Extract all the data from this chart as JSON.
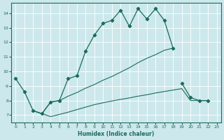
{
  "xlabel": "Humidex (Indice chaleur)",
  "background_color": "#cce8ec",
  "grid_color": "#ffffff",
  "line_color": "#1a6b5a",
  "xlim": [
    -0.5,
    23.5
  ],
  "ylim": [
    6.5,
    14.7
  ],
  "yticks": [
    7,
    8,
    9,
    10,
    11,
    12,
    13,
    14
  ],
  "xticks": [
    0,
    1,
    2,
    3,
    4,
    5,
    6,
    7,
    8,
    9,
    10,
    11,
    12,
    13,
    14,
    15,
    16,
    17,
    18,
    19,
    20,
    21,
    22,
    23
  ],
  "line1_x": [
    0,
    1,
    2,
    3,
    4,
    5,
    6,
    7,
    8,
    9,
    10,
    11,
    12,
    13,
    14,
    15,
    16,
    17,
    18
  ],
  "line1_y": [
    9.5,
    8.6,
    7.3,
    7.1,
    7.9,
    8.0,
    9.5,
    9.7,
    11.4,
    12.5,
    13.3,
    13.5,
    14.2,
    13.1,
    14.3,
    13.6,
    14.3,
    13.5,
    11.6
  ],
  "line2_x": [
    19,
    20,
    21,
    22
  ],
  "line2_y": [
    9.2,
    8.2,
    8.0,
    8.0
  ],
  "line3_x": [
    2,
    3,
    4,
    5,
    6,
    7,
    8,
    9,
    10,
    11,
    12,
    13,
    14,
    15,
    16,
    17,
    18
  ],
  "line3_y": [
    7.3,
    7.1,
    7.9,
    8.0,
    8.3,
    8.55,
    8.85,
    9.1,
    9.4,
    9.65,
    9.95,
    10.25,
    10.6,
    10.9,
    11.15,
    11.45,
    11.6
  ],
  "line4_x": [
    2,
    3,
    4,
    5,
    6,
    7,
    8,
    9,
    10,
    11,
    12,
    13,
    14,
    15,
    16,
    17,
    18,
    19,
    20,
    21,
    22
  ],
  "line4_y": [
    7.3,
    7.1,
    6.9,
    7.05,
    7.2,
    7.38,
    7.55,
    7.72,
    7.85,
    7.97,
    8.08,
    8.18,
    8.3,
    8.4,
    8.52,
    8.62,
    8.72,
    8.82,
    8.0,
    8.0,
    8.0
  ]
}
